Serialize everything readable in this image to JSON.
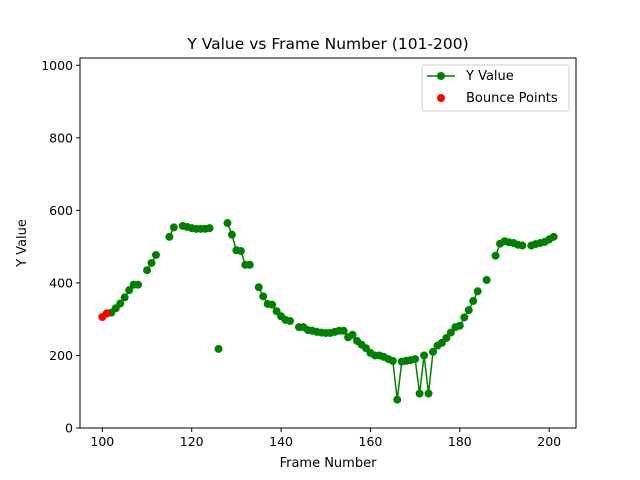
{
  "chart_data": {
    "type": "line",
    "title": "Y Value vs Frame Number (101-200)",
    "xlabel": "Frame Number",
    "ylabel": "Y Value",
    "xlim": [
      95,
      206
    ],
    "ylim": [
      0,
      1020
    ],
    "xticks": [
      100,
      120,
      140,
      160,
      180,
      200
    ],
    "yticks": [
      0,
      200,
      400,
      600,
      800,
      1000
    ],
    "legend_position": "upper-right",
    "series": [
      {
        "name": "Y Value",
        "kind": "line-markers",
        "color": "#008000",
        "segments": [
          {
            "x": [
              101,
              102,
              103,
              104,
              105,
              106,
              107,
              108
            ],
            "y": [
              316,
              318,
              330,
              343,
              360,
              380,
              395,
              395
            ]
          },
          {
            "x": [
              110,
              111,
              112
            ],
            "y": [
              435,
              455,
              477
            ]
          },
          {
            "x": [
              115,
              116
            ],
            "y": [
              527,
              553
            ]
          },
          {
            "x": [
              118,
              119,
              120,
              121,
              122,
              123,
              124
            ],
            "y": [
              557,
              554,
              551,
              549,
              549,
              549,
              551
            ]
          },
          {
            "x": [
              126
            ],
            "y": [
              218
            ]
          },
          {
            "x": [
              128,
              129,
              130,
              131,
              132,
              133
            ],
            "y": [
              565,
              533,
              490,
              488,
              450,
              450
            ]
          },
          {
            "x": [
              135,
              136,
              137,
              138,
              139,
              140,
              141,
              142
            ],
            "y": [
              388,
              363,
              342,
              340,
              322,
              308,
              298,
              295
            ]
          },
          {
            "x": [
              144,
              145,
              146,
              147,
              148,
              149,
              150,
              151,
              152,
              153,
              154,
              155,
              156,
              157,
              158,
              159,
              160,
              161,
              162,
              163,
              164,
              165,
              166,
              167,
              168,
              169,
              170,
              171,
              172,
              173,
              174,
              175,
              176,
              177,
              178,
              179,
              180,
              181,
              182,
              183,
              184
            ],
            "y": [
              278,
              278,
              270,
              268,
              265,
              263,
              262,
              262,
              265,
              268,
              268,
              250,
              257,
              240,
              230,
              220,
              207,
              200,
              200,
              196,
              190,
              185,
              78,
              183,
              185,
              187,
              190,
              95,
              200,
              95,
              210,
              227,
              235,
              248,
              263,
              278,
              282,
              305,
              325,
              350,
              377
            ]
          },
          {
            "x": [
              186
            ],
            "y": [
              408
            ]
          },
          {
            "x": [
              188,
              189,
              190,
              191,
              192,
              193,
              194
            ],
            "y": [
              475,
              508,
              515,
              512,
              510,
              505,
              503
            ]
          },
          {
            "x": [
              196,
              197,
              198,
              199,
              200,
              201
            ],
            "y": [
              503,
              507,
              510,
              513,
              520,
              527
            ]
          }
        ]
      },
      {
        "name": "Bounce Points",
        "kind": "scatter",
        "color": "#ff0000",
        "x": [
          100,
          101
        ],
        "y": [
          306,
          316
        ]
      }
    ]
  }
}
